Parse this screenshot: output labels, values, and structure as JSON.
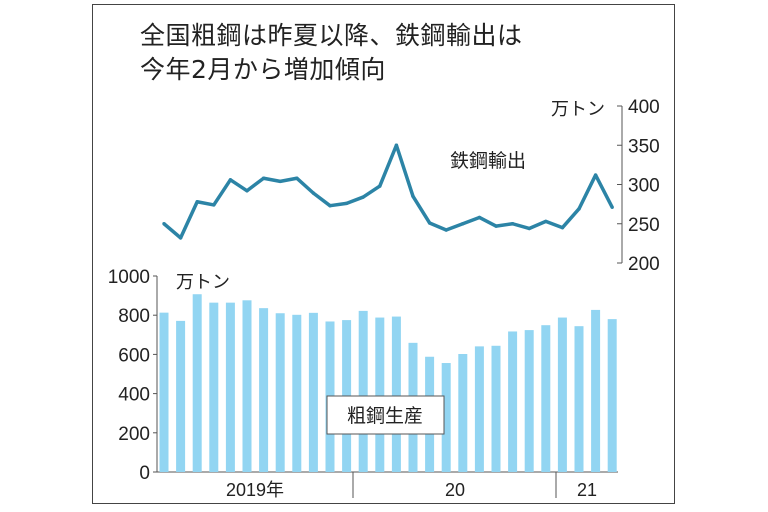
{
  "title_line1": "全国粗鋼は昨夏以降、鉄鋼輸出は",
  "title_line2": "今年2月から増加傾向",
  "colors": {
    "bar": "#92d5f2",
    "line": "#2c84a6",
    "frame": "#444444"
  },
  "chart_data": [
    {
      "type": "line",
      "series": [
        {
          "name": "鉄鋼輸出",
          "values": [
            250,
            232,
            278,
            274,
            306,
            292,
            308,
            304,
            308,
            289,
            273,
            276,
            284,
            298,
            350,
            285,
            251,
            242,
            250,
            258,
            247,
            250,
            244,
            253,
            245,
            269,
            312,
            271
          ]
        }
      ],
      "unit": "万トン",
      "ylim": [
        200,
        400
      ],
      "yticks": [
        "400",
        "350",
        "300",
        "250",
        "200"
      ],
      "axis_side": "right",
      "grid": false
    },
    {
      "type": "bar",
      "series": [
        {
          "name": "粗鋼生産",
          "values": [
            813,
            771,
            907,
            864,
            864,
            876,
            836,
            810,
            802,
            812,
            768,
            775,
            822,
            788,
            793,
            659,
            588,
            556,
            602,
            641,
            644,
            717,
            724,
            749,
            788,
            744,
            827,
            780
          ]
        }
      ],
      "unit": "万トン",
      "ylim": [
        0,
        1000
      ],
      "yticks": [
        "1000",
        "800",
        "600",
        "400",
        "200",
        "0"
      ],
      "xlabels": [
        "2019年",
        "20",
        "21"
      ],
      "grid": false
    }
  ]
}
